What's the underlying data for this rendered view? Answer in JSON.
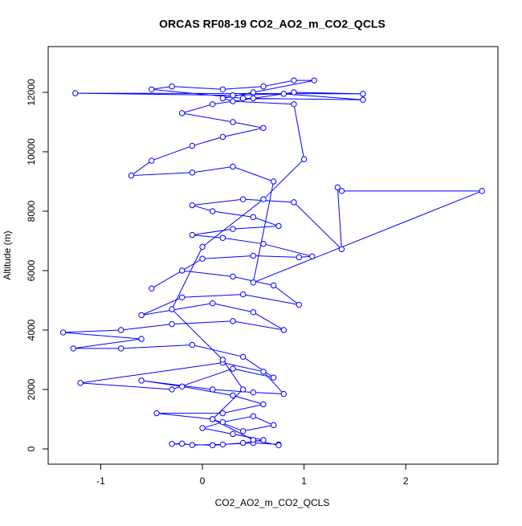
{
  "chart_data": {
    "type": "scatter-line",
    "title": "ORCAS RF08-19 CO2_AO2_m_CO2_QCLS",
    "x_label": "CO2_AO2_m_CO2_QCLS",
    "y_label": "Altitude (m)",
    "xlim": [
      -1.517,
      2.907
    ],
    "ylim": [
      -514,
      13540
    ],
    "xticks": [
      -1,
      0,
      1,
      2
    ],
    "yticks": [
      0,
      2000,
      4000,
      6000,
      8000,
      10000,
      12000
    ],
    "grid": false,
    "series": [
      {
        "color": "#0000ff",
        "x": [
          0.75,
          0.5,
          0.2,
          -0.1,
          -0.2,
          -0.3,
          0.1,
          0.4,
          0.6,
          0.3,
          0.0,
          0.2,
          0.5,
          0.7,
          0.4,
          0.1,
          -0.45,
          0.2,
          0.6,
          0.3,
          -0.2,
          -0.6,
          0.1,
          0.5,
          0.8,
          0.6,
          0.2,
          -1.2,
          -0.3,
          0.3,
          0.7,
          0.4,
          -0.1,
          -0.8,
          -1.27,
          -0.6,
          -1.37,
          -0.8,
          -0.3,
          0.3,
          0.8,
          0.5,
          0.1,
          -0.6,
          -0.2,
          0.4,
          0.95,
          0.7,
          0.3,
          -0.2,
          -0.5,
          0.0,
          0.5,
          0.95,
          1.08,
          0.6,
          0.2,
          -0.1,
          0.3,
          0.75,
          0.5,
          0.1,
          -0.1,
          0.4,
          0.9,
          1.37,
          1.33,
          1.37,
          2.75,
          0.5,
          0.7,
          0.3,
          -0.1,
          -0.7,
          -0.5,
          -0.1,
          0.2,
          0.6,
          0.3,
          -0.2,
          0.1,
          0.5,
          0.9,
          1.58,
          -1.25,
          0.3,
          0.8,
          1.58,
          0.4,
          -0.5,
          -0.3,
          0.2,
          0.6,
          0.9,
          1.1,
          0.5,
          0.2,
          0.3,
          0.9,
          1.0,
          0.6,
          0.0,
          -0.3,
          0.2,
          0.4,
          0.1,
          0.5,
          0.75
        ],
        "values": [
          150,
          200,
          150,
          130,
          180,
          170,
          120,
          200,
          300,
          500,
          700,
          900,
          1100,
          800,
          600,
          1000,
          1200,
          1200,
          1500,
          1800,
          2100,
          2300,
          2000,
          1900,
          1850,
          2600,
          2900,
          2220,
          2000,
          2700,
          2400,
          3100,
          3500,
          3380,
          3380,
          3700,
          3920,
          4000,
          4200,
          4300,
          4000,
          4600,
          4900,
          4500,
          5100,
          5200,
          4850,
          5500,
          5800,
          6000,
          5400,
          6400,
          6500,
          6450,
          6480,
          6900,
          7100,
          7200,
          7400,
          7500,
          7800,
          8000,
          8200,
          8400,
          8300,
          6720,
          8800,
          8680,
          8680,
          5600,
          9000,
          9500,
          9300,
          9200,
          9700,
          10200,
          10500,
          10800,
          11000,
          11300,
          11600,
          11800,
          12000,
          11950,
          11970,
          11900,
          11950,
          11750,
          11800,
          12100,
          12200,
          12100,
          12200,
          12400,
          12400,
          12000,
          11800,
          11700,
          11600,
          9750,
          8400,
          6800,
          4700,
          3000,
          2000,
          1000,
          300,
          120
        ]
      }
    ]
  }
}
